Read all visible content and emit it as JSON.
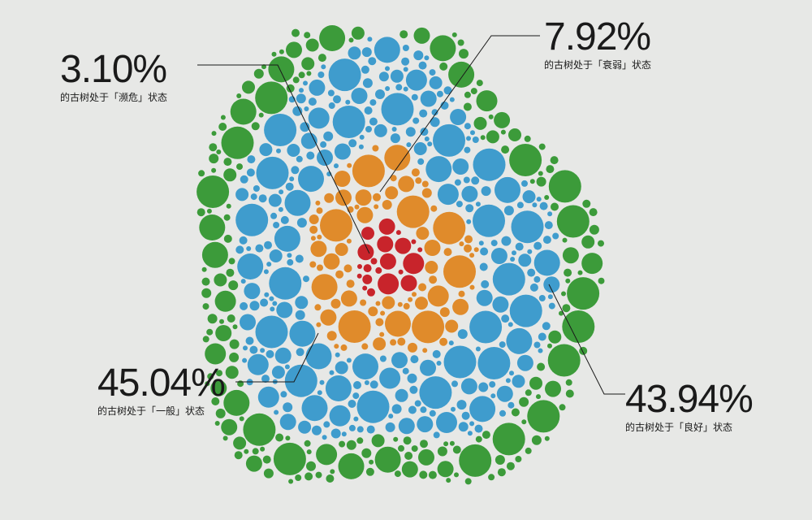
{
  "chart_data": {
    "type": "bubble-cluster",
    "series": [
      {
        "label": "的古树处于「濒危」状态",
        "percent": "3.10%",
        "value": 3.1,
        "color": "#c8242b"
      },
      {
        "label": "的古树处于「衰弱」状态",
        "percent": "7.92%",
        "value": 7.92,
        "color": "#e08b2b"
      },
      {
        "label": "的古树处于「一般」状态",
        "percent": "45.04%",
        "value": 45.04,
        "color": "#3f9ccd"
      },
      {
        "label": "的古树处于「良好」状态",
        "percent": "43.94%",
        "value": 43.94,
        "color": "#3c9b3a"
      }
    ]
  }
}
